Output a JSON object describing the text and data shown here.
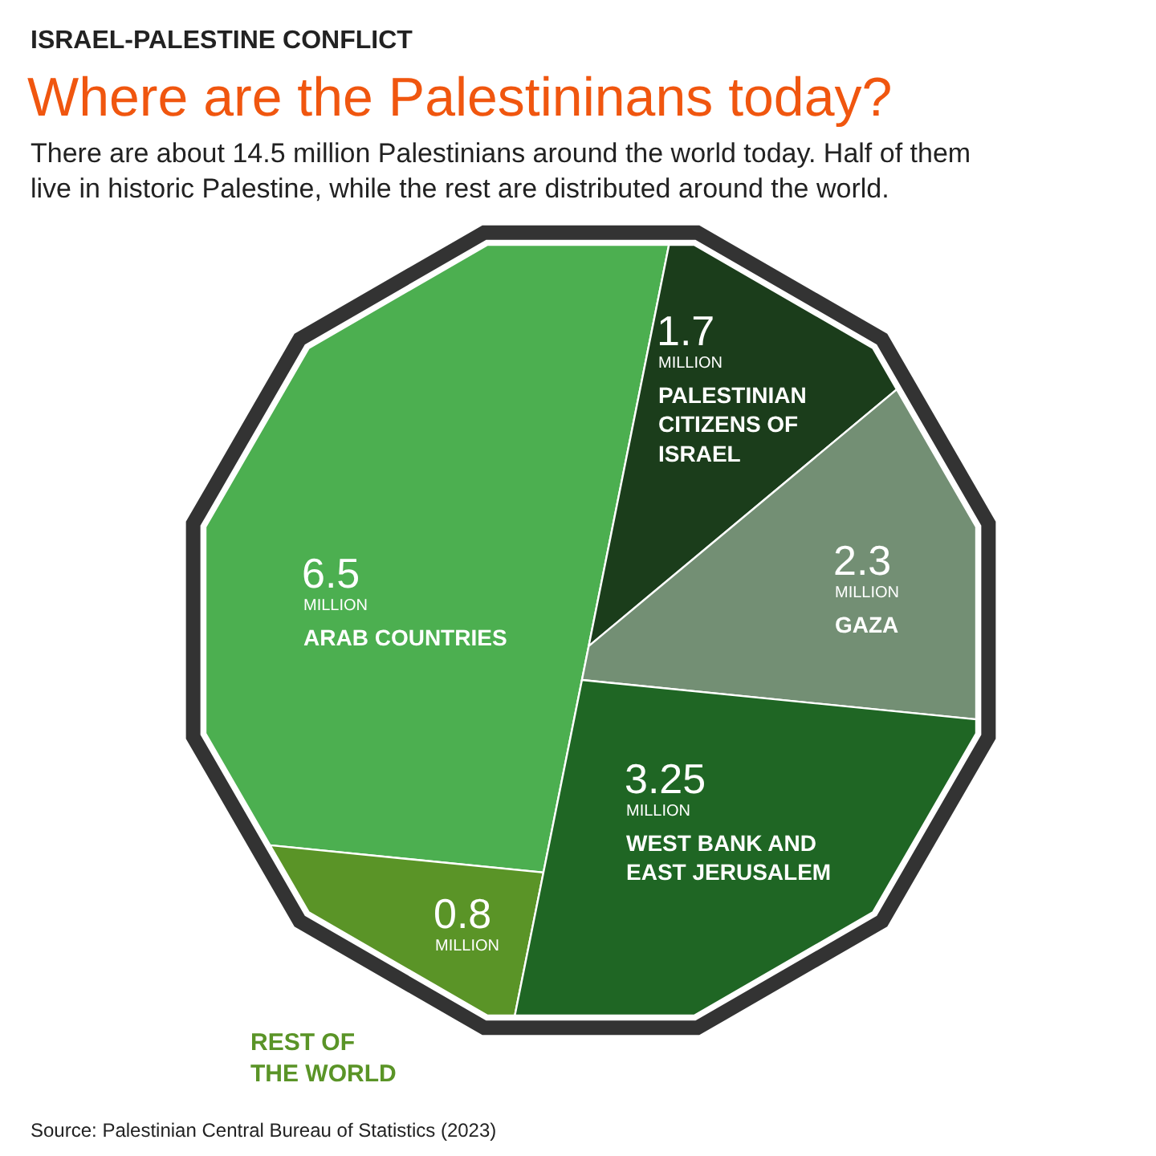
{
  "chart_data": {
    "type": "other",
    "title": "Where are the Palestininans today?",
    "subtitle": "There are about 14.5 million Palestinians around the world today. Half of them live in historic Palestine, while the rest are distributed around the world.",
    "categories": [
      "ARAB COUNTRIES",
      "REST OF THE WORLD",
      "PALESTINIAN CITIZENS OF ISRAEL",
      "GAZA",
      "WEST BANK AND EAST JERUSALEM"
    ],
    "values": [
      6.5,
      0.8,
      1.7,
      2.3,
      3.25
    ],
    "value_labels": [
      "6.5\nMILLION",
      "0.8\nMILLION",
      "1.7\nMILLION",
      "2.3\nMILLION",
      "3.25\nMILLION"
    ],
    "colors": [
      "#4caf50",
      "#5a9427",
      "#1b3d1b",
      "#738f74",
      "#1f6624"
    ],
    "annotations": [
      "ISRAEL-PALESTINE CONFLICT",
      "Source: Palestinian Central Bureau of Statistics (2023)"
    ]
  }
}
